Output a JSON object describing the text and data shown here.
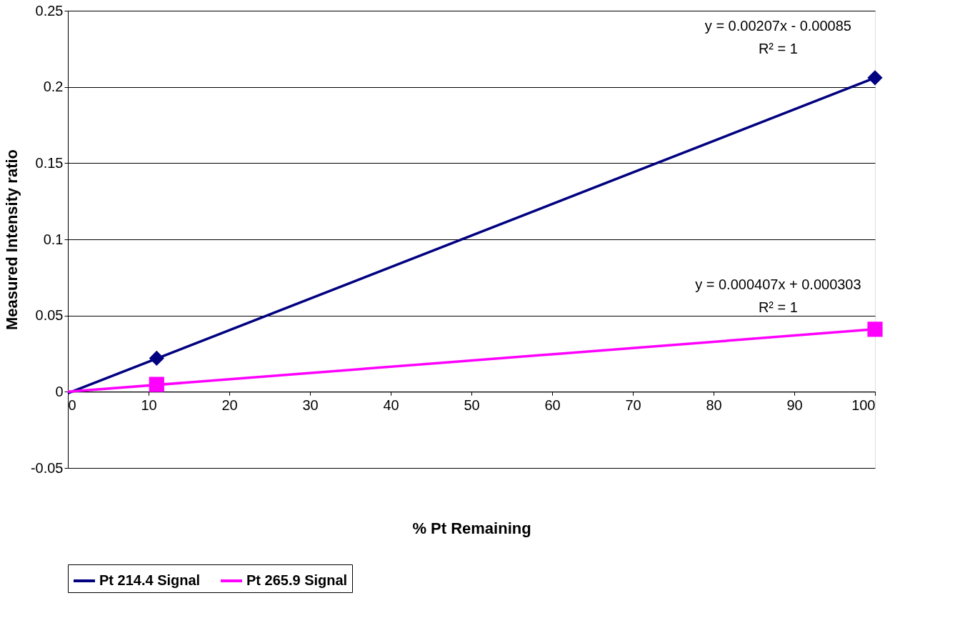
{
  "chart_data": {
    "type": "scatter",
    "xlabel": "% Pt Remaining",
    "ylabel": "Measured Intensity ratio",
    "xlim": [
      0,
      100
    ],
    "ylim": [
      -0.05,
      0.25
    ],
    "xticks": [
      0,
      10,
      20,
      30,
      40,
      50,
      60,
      70,
      80,
      90,
      100
    ],
    "yticks": [
      -0.05,
      0,
      0.05,
      0.1,
      0.15,
      0.2,
      0.25
    ],
    "grid": "y",
    "legend": "bottom",
    "series": [
      {
        "type": "scatter",
        "color": "#000080",
        "marker": "diamond",
        "x": [
          11,
          100
        ],
        "values": [
          0.022,
          0.206
        ]
      },
      {
        "type": "scatter",
        "color": "#ff00ff",
        "marker": "square",
        "x": [
          11,
          100
        ],
        "values": [
          0.0048,
          0.041
        ]
      },
      {
        "type": "line",
        "name": "Pt 214.4 Signal",
        "color": "#000080",
        "marker": "none",
        "x": [
          0,
          100
        ],
        "values": [
          -0.001,
          0.206
        ]
      },
      {
        "type": "line",
        "name": "Pt 265.9 Signal",
        "color": "#ff00ff",
        "marker": "none",
        "x": [
          0,
          100
        ],
        "values": [
          0.0,
          0.041
        ]
      }
    ],
    "annotations": [
      "y = 0.00207x - 0.00085",
      "R² = 1",
      "y = 0.000407x + 0.000303",
      "R² = 1"
    ]
  }
}
